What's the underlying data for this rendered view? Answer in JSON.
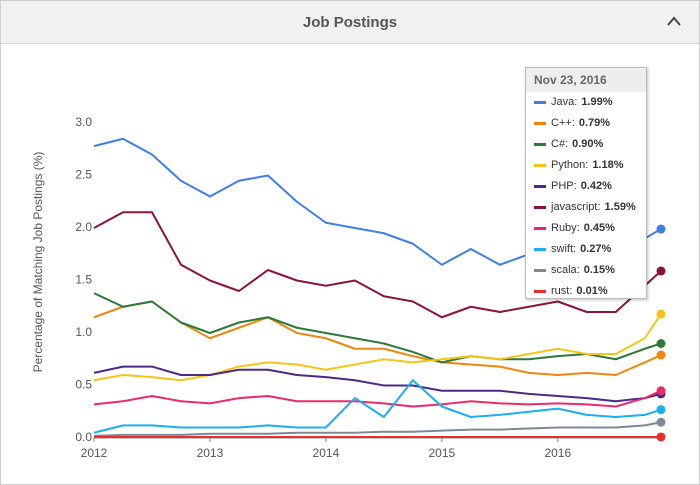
{
  "header": {
    "title": "Job Postings"
  },
  "chart_data": {
    "type": "line",
    "ylabel": "Percentage of Matching Job Postings (%)",
    "x": [
      2012,
      2012.25,
      2012.5,
      2012.75,
      2013,
      2013.25,
      2013.5,
      2013.75,
      2014,
      2014.25,
      2014.5,
      2014.75,
      2015,
      2015.25,
      2015.5,
      2015.75,
      2016,
      2016.25,
      2016.5,
      2016.75,
      2016.89
    ],
    "xlim": [
      2012,
      2016.89
    ],
    "xticks": [
      2012,
      2013,
      2014,
      2015,
      2016
    ],
    "ylim": [
      0,
      3
    ],
    "yticks": [
      {
        "value": 0,
        "label": "0.0"
      },
      0.5,
      {
        "value": 1,
        "label": "1.0"
      },
      1.5,
      {
        "value": 2,
        "label": "2.0"
      },
      2.5,
      {
        "value": 3,
        "label": "3.0"
      }
    ],
    "grid": false,
    "series": [
      {
        "name": "Java",
        "color": "#3d7fe6",
        "values": [
          2.78,
          2.85,
          2.7,
          2.45,
          2.3,
          2.45,
          2.5,
          2.25,
          2.05,
          2.0,
          1.95,
          1.85,
          1.65,
          1.8,
          1.65,
          1.75,
          1.85,
          1.75,
          1.75,
          1.9,
          1.99
        ]
      },
      {
        "name": "C++",
        "color": "#f0860f",
        "values": [
          1.15,
          1.25,
          1.3,
          1.1,
          0.95,
          1.05,
          1.15,
          1.0,
          0.95,
          0.85,
          0.85,
          0.78,
          0.72,
          0.7,
          0.68,
          0.62,
          0.6,
          0.62,
          0.6,
          0.72,
          0.79
        ]
      },
      {
        "name": "C#",
        "color": "#2c7a3a",
        "values": [
          1.38,
          1.25,
          1.3,
          1.1,
          1.0,
          1.1,
          1.15,
          1.05,
          1.0,
          0.95,
          0.9,
          0.82,
          0.72,
          0.78,
          0.75,
          0.75,
          0.78,
          0.8,
          0.75,
          0.85,
          0.9
        ]
      },
      {
        "name": "Python",
        "color": "#f5c518",
        "values": [
          0.55,
          0.6,
          0.58,
          0.55,
          0.6,
          0.68,
          0.72,
          0.7,
          0.65,
          0.7,
          0.75,
          0.72,
          0.75,
          0.78,
          0.75,
          0.8,
          0.85,
          0.8,
          0.8,
          0.95,
          1.18
        ]
      },
      {
        "name": "PHP",
        "color": "#4b2a88",
        "values": [
          0.62,
          0.68,
          0.68,
          0.6,
          0.6,
          0.65,
          0.65,
          0.6,
          0.58,
          0.55,
          0.5,
          0.5,
          0.45,
          0.45,
          0.45,
          0.42,
          0.4,
          0.38,
          0.35,
          0.38,
          0.42
        ]
      },
      {
        "name": "javascript",
        "color": "#8c1439",
        "values": [
          2.0,
          2.15,
          2.15,
          1.65,
          1.5,
          1.4,
          1.6,
          1.5,
          1.45,
          1.5,
          1.35,
          1.3,
          1.15,
          1.25,
          1.2,
          1.25,
          1.3,
          1.2,
          1.2,
          1.45,
          1.59
        ]
      },
      {
        "name": "Ruby",
        "color": "#ec2a6a",
        "values": [
          0.32,
          0.35,
          0.4,
          0.35,
          0.33,
          0.38,
          0.4,
          0.35,
          0.35,
          0.35,
          0.33,
          0.3,
          0.32,
          0.35,
          0.33,
          0.32,
          0.33,
          0.32,
          0.3,
          0.38,
          0.45
        ]
      },
      {
        "name": "swift",
        "color": "#1aaff0",
        "values": [
          0.05,
          0.12,
          0.12,
          0.1,
          0.1,
          0.1,
          0.12,
          0.1,
          0.1,
          0.38,
          0.2,
          0.55,
          0.3,
          0.2,
          0.22,
          0.25,
          0.28,
          0.22,
          0.2,
          0.22,
          0.27
        ]
      },
      {
        "name": "scala",
        "color": "#7d8a96",
        "values": [
          0.02,
          0.03,
          0.03,
          0.03,
          0.04,
          0.04,
          0.04,
          0.05,
          0.05,
          0.05,
          0.06,
          0.06,
          0.07,
          0.08,
          0.08,
          0.09,
          0.1,
          0.1,
          0.1,
          0.12,
          0.15
        ]
      },
      {
        "name": "rust",
        "color": "#e8302a",
        "values": [
          0.01,
          0.01,
          0.01,
          0.01,
          0.01,
          0.01,
          0.01,
          0.01,
          0.01,
          0.01,
          0.01,
          0.01,
          0.01,
          0.01,
          0.01,
          0.01,
          0.01,
          0.01,
          0.01,
          0.01,
          0.01
        ]
      }
    ],
    "tooltip": {
      "title": "Nov 23, 2016",
      "labels": [
        "1.99%",
        "0.79%",
        "0.90%",
        "1.18%",
        "0.42%",
        "1.59%",
        "0.45%",
        "0.27%",
        "0.15%",
        "0.01%"
      ]
    }
  }
}
